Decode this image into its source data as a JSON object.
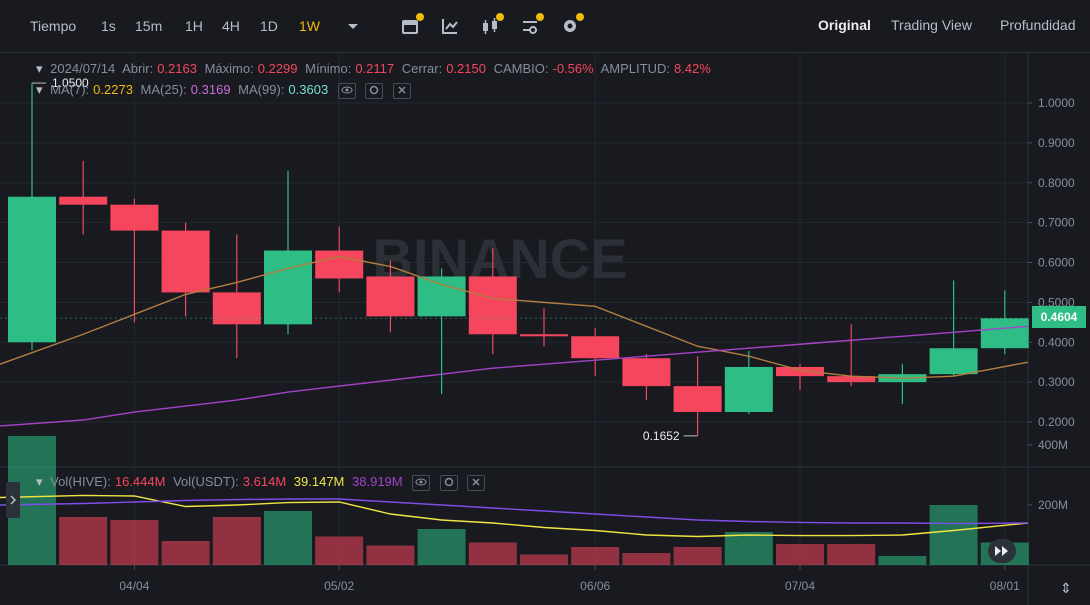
{
  "toolbar": {
    "intervals": [
      {
        "label": "Tiempo",
        "active": false
      },
      {
        "label": "1s",
        "active": false
      },
      {
        "label": "15m",
        "active": false
      },
      {
        "label": "1H",
        "active": false
      },
      {
        "label": "4H",
        "active": false
      },
      {
        "label": "1D",
        "active": false
      },
      {
        "label": "1W",
        "active": true
      }
    ],
    "views": [
      {
        "label": "Original",
        "active": true
      },
      {
        "label": "Trading View",
        "active": false
      },
      {
        "label": "Profundidad",
        "active": false
      }
    ]
  },
  "ohlc_legend": {
    "date": "2024/07/14",
    "open_label": "Abrir:",
    "open": "0.2163",
    "high_label": "Máximo:",
    "high": "0.2299",
    "low_label": "Mínimo:",
    "low": "0.2117",
    "close_label": "Cerrar:",
    "close": "0.2150",
    "change_label": "CAMBIO:",
    "change": "-0.56%",
    "amp_label": "AMPLITUD:",
    "amp": "8.42%"
  },
  "ma_legend": {
    "ma7_label": "MA(7):",
    "ma7": "0.2273",
    "ma25_label": "MA(25):",
    "ma25": "0.3169",
    "ma99_label": "MA(99):",
    "ma99": "0.3603"
  },
  "vol_legend": {
    "hive_label": "Vol(HIVE):",
    "hive": "16.444M",
    "usdt_label": "Vol(USDT):",
    "usdt": "3.614M",
    "v2": "39.147M",
    "v3": "38.919M"
  },
  "watermark": "BINANCE",
  "current_price": "0.4604",
  "colors": {
    "up": "#2ebd85",
    "down": "#f6465d",
    "ma7": "#f0b90b",
    "ma25": "#b27d3f",
    "ma99": "#a543c8"
  },
  "chart_data": {
    "type": "candlestick",
    "price_ticks": [
      "1.0000",
      "0.9000",
      "0.8000",
      "0.7000",
      "0.6000",
      "0.5000",
      "0.4000",
      "0.3000",
      "0.2000"
    ],
    "volume_ticks": [
      "400M",
      "200M"
    ],
    "x_ticks": [
      {
        "label": "04/04",
        "index": 2
      },
      {
        "label": "05/02",
        "index": 6
      },
      {
        "label": "06/06",
        "index": 11
      },
      {
        "label": "07/04",
        "index": 15
      },
      {
        "label": "08/01",
        "index": 19
      }
    ],
    "annotations": {
      "high_label": "1.0500",
      "high_value": 1.05,
      "high_index": 0,
      "low_label": "0.1652",
      "low_value": 0.1652,
      "low_index": 13
    },
    "candles": [
      {
        "o": 0.4,
        "h": 1.05,
        "l": 0.38,
        "c": 0.765,
        "v": 430
      },
      {
        "o": 0.765,
        "h": 0.855,
        "l": 0.67,
        "c": 0.745,
        "v": 160
      },
      {
        "o": 0.745,
        "h": 0.76,
        "l": 0.45,
        "c": 0.68,
        "v": 150
      },
      {
        "o": 0.68,
        "h": 0.7,
        "l": 0.465,
        "c": 0.525,
        "v": 80
      },
      {
        "o": 0.525,
        "h": 0.67,
        "l": 0.36,
        "c": 0.445,
        "v": 160
      },
      {
        "o": 0.445,
        "h": 0.83,
        "l": 0.42,
        "c": 0.63,
        "v": 180
      },
      {
        "o": 0.63,
        "h": 0.69,
        "l": 0.525,
        "c": 0.56,
        "v": 95
      },
      {
        "o": 0.565,
        "h": 0.605,
        "l": 0.425,
        "c": 0.465,
        "v": 65
      },
      {
        "o": 0.465,
        "h": 0.585,
        "l": 0.27,
        "c": 0.565,
        "v": 120
      },
      {
        "o": 0.565,
        "h": 0.635,
        "l": 0.37,
        "c": 0.42,
        "v": 75
      },
      {
        "o": 0.42,
        "h": 0.485,
        "l": 0.39,
        "c": 0.415,
        "v": 35
      },
      {
        "o": 0.415,
        "h": 0.435,
        "l": 0.315,
        "c": 0.36,
        "v": 60
      },
      {
        "o": 0.36,
        "h": 0.37,
        "l": 0.255,
        "c": 0.29,
        "v": 40
      },
      {
        "o": 0.29,
        "h": 0.365,
        "l": 0.1652,
        "c": 0.225,
        "v": 60
      },
      {
        "o": 0.225,
        "h": 0.378,
        "l": 0.22,
        "c": 0.338,
        "v": 110
      },
      {
        "o": 0.338,
        "h": 0.345,
        "l": 0.28,
        "c": 0.315,
        "v": 70
      },
      {
        "o": 0.315,
        "h": 0.445,
        "l": 0.29,
        "c": 0.3,
        "v": 70
      },
      {
        "o": 0.3,
        "h": 0.345,
        "l": 0.245,
        "c": 0.32,
        "v": 30
      },
      {
        "o": 0.32,
        "h": 0.555,
        "l": 0.315,
        "c": 0.385,
        "v": 200
      },
      {
        "o": 0.385,
        "h": 0.53,
        "l": 0.37,
        "c": 0.46,
        "v": 75
      }
    ],
    "ma7": [
      0.345,
      0.42,
      0.47,
      0.52,
      0.55,
      0.585,
      0.615,
      0.59,
      0.545,
      0.51,
      0.5,
      0.49,
      0.44,
      0.39,
      0.365,
      0.33,
      0.315,
      0.31,
      0.315,
      0.35
    ],
    "ma25": [
      0.19,
      0.205,
      0.225,
      0.24,
      0.255,
      0.275,
      0.29,
      0.305,
      0.32,
      0.335,
      0.345,
      0.355,
      0.365,
      0.375,
      0.385,
      0.395,
      0.405,
      0.415,
      0.425,
      0.44
    ],
    "vol_ma1": [
      225,
      232,
      230,
      195,
      200,
      208,
      210,
      170,
      150,
      140,
      125,
      115,
      100,
      95,
      100,
      98,
      98,
      100,
      115,
      140
    ],
    "vol_ma2": [
      200,
      205,
      210,
      215,
      218,
      220,
      220,
      210,
      200,
      190,
      180,
      170,
      160,
      150,
      145,
      142,
      140,
      140,
      138,
      140
    ]
  }
}
